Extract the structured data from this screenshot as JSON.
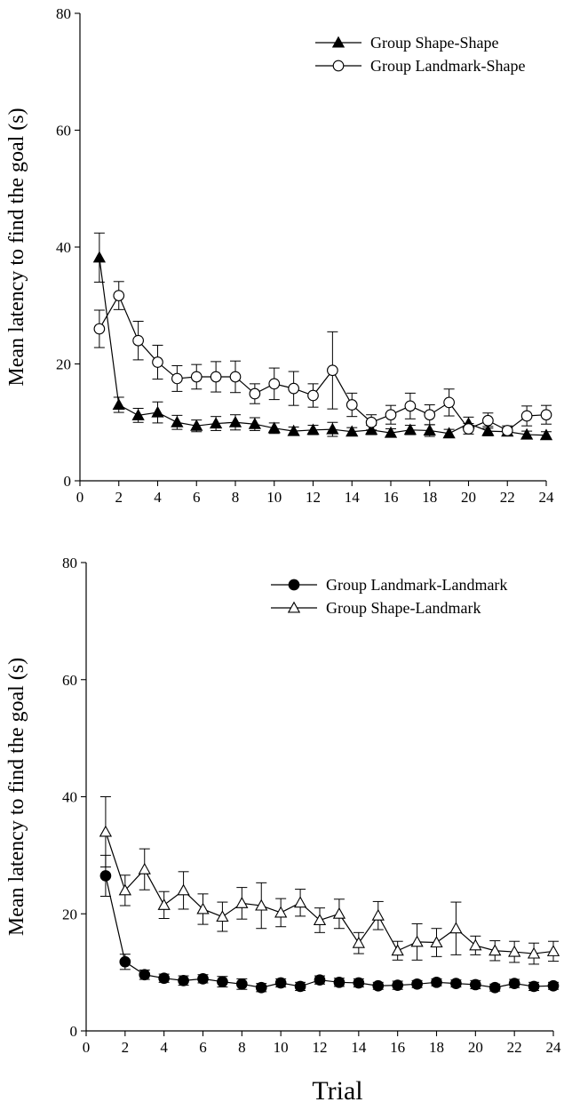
{
  "chart_data": [
    {
      "type": "line",
      "ylabel": "Mean latency to find the goal (s)",
      "xlabel": "",
      "xlim": [
        0,
        24
      ],
      "ylim": [
        0,
        80
      ],
      "xticks": [
        0,
        2,
        4,
        6,
        8,
        10,
        12,
        14,
        16,
        18,
        20,
        22,
        24
      ],
      "yticks": [
        0,
        20,
        40,
        60,
        80
      ],
      "grid": false,
      "legend": "top-right",
      "x": [
        1,
        2,
        3,
        4,
        5,
        6,
        7,
        8,
        9,
        10,
        11,
        12,
        13,
        14,
        15,
        16,
        17,
        18,
        19,
        20,
        21,
        22,
        23,
        24
      ],
      "series": [
        {
          "name": "Group Shape-Shape",
          "marker": "filled-triangle",
          "values": [
            38.2,
            13.0,
            11.2,
            11.7,
            10.0,
            9.4,
            9.8,
            10.0,
            9.7,
            9.0,
            8.5,
            8.7,
            8.8,
            8.4,
            8.7,
            8.2,
            8.7,
            8.6,
            8.1,
            9.8,
            8.5,
            8.4,
            7.9,
            7.8
          ],
          "errors": [
            4.2,
            1.3,
            1.2,
            1.8,
            1.2,
            1.0,
            1.2,
            1.3,
            1.1,
            0.9,
            0.7,
            0.8,
            1.2,
            0.7,
            0.8,
            0.7,
            0.8,
            1.0,
            0.7,
            1.1,
            0.8,
            0.7,
            0.6,
            0.6
          ]
        },
        {
          "name": "Group Landmark-Shape",
          "marker": "open-circle",
          "values": [
            26.0,
            31.7,
            24.0,
            20.3,
            17.5,
            17.8,
            17.8,
            17.8,
            14.9,
            16.6,
            15.8,
            14.6,
            18.9,
            13.0,
            10.0,
            11.3,
            12.8,
            11.3,
            13.4,
            8.9,
            10.3,
            8.6,
            11.1,
            11.3
          ],
          "errors": [
            3.2,
            2.4,
            3.3,
            2.9,
            2.2,
            2.1,
            2.6,
            2.7,
            1.7,
            2.7,
            2.9,
            2.0,
            6.6,
            2.0,
            1.3,
            1.6,
            2.2,
            1.7,
            2.3,
            0.9,
            1.3,
            0.8,
            1.7,
            1.6
          ]
        }
      ]
    },
    {
      "type": "line",
      "ylabel": "Mean latency to find the goal (s)",
      "xlabel": "Trial",
      "xlim": [
        0,
        24
      ],
      "ylim": [
        0,
        80
      ],
      "xticks": [
        0,
        2,
        4,
        6,
        8,
        10,
        12,
        14,
        16,
        18,
        20,
        22,
        24
      ],
      "yticks": [
        0,
        20,
        40,
        60,
        80
      ],
      "grid": false,
      "legend": "top-right",
      "x": [
        1,
        2,
        3,
        4,
        5,
        6,
        7,
        8,
        9,
        10,
        11,
        12,
        13,
        14,
        15,
        16,
        17,
        18,
        19,
        20,
        21,
        22,
        23,
        24
      ],
      "series": [
        {
          "name": "Group Landmark-Landmark",
          "marker": "filled-circle",
          "values": [
            26.5,
            11.8,
            9.6,
            9.0,
            8.6,
            8.9,
            8.4,
            8.0,
            7.4,
            8.2,
            7.6,
            8.7,
            8.3,
            8.2,
            7.7,
            7.8,
            8.0,
            8.3,
            8.1,
            7.9,
            7.4,
            8.1,
            7.6,
            7.7
          ],
          "errors": [
            3.5,
            1.3,
            0.8,
            0.7,
            0.8,
            0.7,
            0.9,
            0.9,
            0.7,
            0.7,
            0.7,
            0.7,
            0.7,
            0.7,
            0.6,
            0.7,
            0.6,
            0.6,
            0.6,
            0.7,
            0.6,
            0.7,
            0.7,
            0.6
          ]
        },
        {
          "name": "Group Shape-Landmark",
          "marker": "open-triangle",
          "values": [
            34.0,
            24.0,
            27.6,
            21.5,
            24.0,
            20.8,
            19.5,
            21.8,
            21.4,
            20.2,
            21.9,
            18.9,
            20.0,
            15.0,
            19.7,
            13.7,
            15.2,
            15.1,
            17.5,
            14.6,
            13.7,
            13.5,
            13.2,
            13.6
          ],
          "errors": [
            6.0,
            2.6,
            3.5,
            2.3,
            3.2,
            2.6,
            2.5,
            2.7,
            3.9,
            2.4,
            2.3,
            2.1,
            2.5,
            1.8,
            2.4,
            1.6,
            3.1,
            2.4,
            4.5,
            1.6,
            1.7,
            1.8,
            1.8,
            1.7
          ]
        }
      ]
    }
  ]
}
